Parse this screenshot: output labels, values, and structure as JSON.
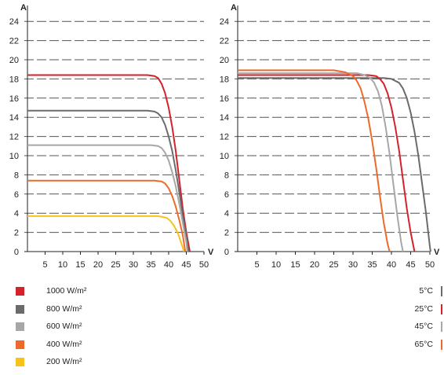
{
  "chart_data": [
    {
      "type": "line",
      "title": "",
      "y_unit_label": "A",
      "x_unit_label": "V",
      "xlim": [
        0,
        50
      ],
      "ylim": [
        0,
        25
      ],
      "x_ticks": [
        "5",
        "10",
        "15",
        "20",
        "25",
        "30",
        "35",
        "40",
        "45",
        "50"
      ],
      "y_ticks": [
        "0",
        "2",
        "4",
        "6",
        "8",
        "10",
        "12",
        "14",
        "16",
        "18",
        "20",
        "22",
        "24"
      ],
      "grid": "horizontal-dashed",
      "series": [
        {
          "name": "1000 W/m²",
          "color": "#d3222a",
          "points": [
            [
              0,
              18.4
            ],
            [
              34,
              18.4
            ],
            [
              36,
              18.3
            ],
            [
              37,
              18.1
            ],
            [
              38,
              17.5
            ],
            [
              39,
              16.5
            ],
            [
              40,
              15
            ],
            [
              41,
              13
            ],
            [
              42,
              10.5
            ],
            [
              43,
              7.5
            ],
            [
              44,
              4.5
            ],
            [
              45,
              2
            ],
            [
              46,
              0
            ]
          ]
        },
        {
          "name": "800 W/m²",
          "color": "#6b6b6b",
          "points": [
            [
              0,
              14.7
            ],
            [
              34,
              14.7
            ],
            [
              36,
              14.6
            ],
            [
              37,
              14.4
            ],
            [
              38,
              14.0
            ],
            [
              39,
              13.2
            ],
            [
              40,
              12
            ],
            [
              41,
              10.5
            ],
            [
              42,
              8.5
            ],
            [
              43,
              6.2
            ],
            [
              44,
              3.8
            ],
            [
              45,
              1.6
            ],
            [
              45.6,
              0
            ]
          ]
        },
        {
          "name": "600 W/m²",
          "color": "#a7a7a7",
          "points": [
            [
              0,
              11.1
            ],
            [
              35,
              11.1
            ],
            [
              37,
              11.0
            ],
            [
              38,
              10.8
            ],
            [
              39,
              10.3
            ],
            [
              40,
              9.5
            ],
            [
              41,
              8.3
            ],
            [
              42,
              6.8
            ],
            [
              43,
              5.0
            ],
            [
              44,
              3.0
            ],
            [
              45,
              1.0
            ],
            [
              45.3,
              0
            ]
          ]
        },
        {
          "name": "400 W/m²",
          "color": "#ee6a2a",
          "points": [
            [
              0,
              7.4
            ],
            [
              36,
              7.4
            ],
            [
              38,
              7.3
            ],
            [
              39,
              7.1
            ],
            [
              40,
              6.6
            ],
            [
              41,
              5.8
            ],
            [
              42,
              4.7
            ],
            [
              43,
              3.3
            ],
            [
              44,
              1.7
            ],
            [
              44.7,
              0
            ]
          ]
        },
        {
          "name": "200 W/m²",
          "color": "#f6c21c",
          "points": [
            [
              0,
              3.7
            ],
            [
              37,
              3.7
            ],
            [
              38.5,
              3.6
            ],
            [
              39.5,
              3.5
            ],
            [
              40.5,
              3.2
            ],
            [
              41.5,
              2.7
            ],
            [
              42.5,
              2.0
            ],
            [
              43.3,
              1.2
            ],
            [
              44,
              0.4
            ],
            [
              44.3,
              0
            ]
          ]
        }
      ]
    },
    {
      "type": "line",
      "title": "",
      "y_unit_label": "A",
      "x_unit_label": "V",
      "xlim": [
        0,
        50
      ],
      "ylim": [
        0,
        25
      ],
      "x_ticks": [
        "5",
        "10",
        "15",
        "20",
        "25",
        "30",
        "35",
        "40",
        "45",
        "50"
      ],
      "y_ticks": [
        "0",
        "2",
        "4",
        "6",
        "8",
        "10",
        "12",
        "14",
        "16",
        "18",
        "20",
        "22",
        "24"
      ],
      "grid": "horizontal-dashed",
      "series": [
        {
          "name": "5°C",
          "color": "#6b6b6b",
          "points": [
            [
              0,
              18.1
            ],
            [
              38,
              18.1
            ],
            [
              40,
              18.0
            ],
            [
              42,
              17.6
            ],
            [
              43,
              17.0
            ],
            [
              44,
              16.0
            ],
            [
              45,
              14.5
            ],
            [
              46,
              12.5
            ],
            [
              47,
              10
            ],
            [
              48,
              7
            ],
            [
              49,
              4
            ],
            [
              50,
              0.5
            ],
            [
              50.2,
              0
            ]
          ]
        },
        {
          "name": "25°C",
          "color": "#d3222a",
          "points": [
            [
              0,
              18.4
            ],
            [
              34,
              18.4
            ],
            [
              36,
              18.3
            ],
            [
              37,
              18.0
            ],
            [
              38,
              17.5
            ],
            [
              39,
              16.5
            ],
            [
              40,
              15
            ],
            [
              41,
              13
            ],
            [
              42,
              10.5
            ],
            [
              43,
              7.5
            ],
            [
              44,
              4.5
            ],
            [
              45,
              2
            ],
            [
              46,
              0
            ]
          ]
        },
        {
          "name": "45°C",
          "color": "#a7a7a7",
          "points": [
            [
              0,
              18.6
            ],
            [
              31,
              18.6
            ],
            [
              33,
              18.4
            ],
            [
              34.5,
              18.1
            ],
            [
              35.5,
              17.6
            ],
            [
              36.5,
              16.7
            ],
            [
              37.5,
              15.2
            ],
            [
              38.5,
              13
            ],
            [
              39.5,
              10.2
            ],
            [
              40.5,
              7
            ],
            [
              41.5,
              3.8
            ],
            [
              42.5,
              1
            ],
            [
              43,
              0
            ]
          ]
        },
        {
          "name": "65°C",
          "color": "#ee6a2a",
          "points": [
            [
              0,
              18.9
            ],
            [
              25,
              18.9
            ],
            [
              28,
              18.7
            ],
            [
              30,
              18.3
            ],
            [
              31,
              17.8
            ],
            [
              32,
              17.0
            ],
            [
              33,
              15.6
            ],
            [
              34,
              13.8
            ],
            [
              35,
              11.5
            ],
            [
              36,
              8.8
            ],
            [
              37,
              5.8
            ],
            [
              38,
              3
            ],
            [
              39,
              0.8
            ],
            [
              39.5,
              0
            ]
          ]
        }
      ]
    }
  ],
  "legend_irradiance": [
    {
      "label": "1000 W/m²",
      "color": "#d3222a"
    },
    {
      "label": "800 W/m²",
      "color": "#6b6b6b"
    },
    {
      "label": "600 W/m²",
      "color": "#a7a7a7"
    },
    {
      "label": "400 W/m²",
      "color": "#ee6a2a"
    },
    {
      "label": "200 W/m²",
      "color": "#f6c21c"
    }
  ],
  "legend_temperature": [
    {
      "label": "5°C",
      "color": "#6b6b6b"
    },
    {
      "label": "25°C",
      "color": "#d3222a"
    },
    {
      "label": "45°C",
      "color": "#a7a7a7"
    },
    {
      "label": "65°C",
      "color": "#ee6a2a"
    }
  ]
}
